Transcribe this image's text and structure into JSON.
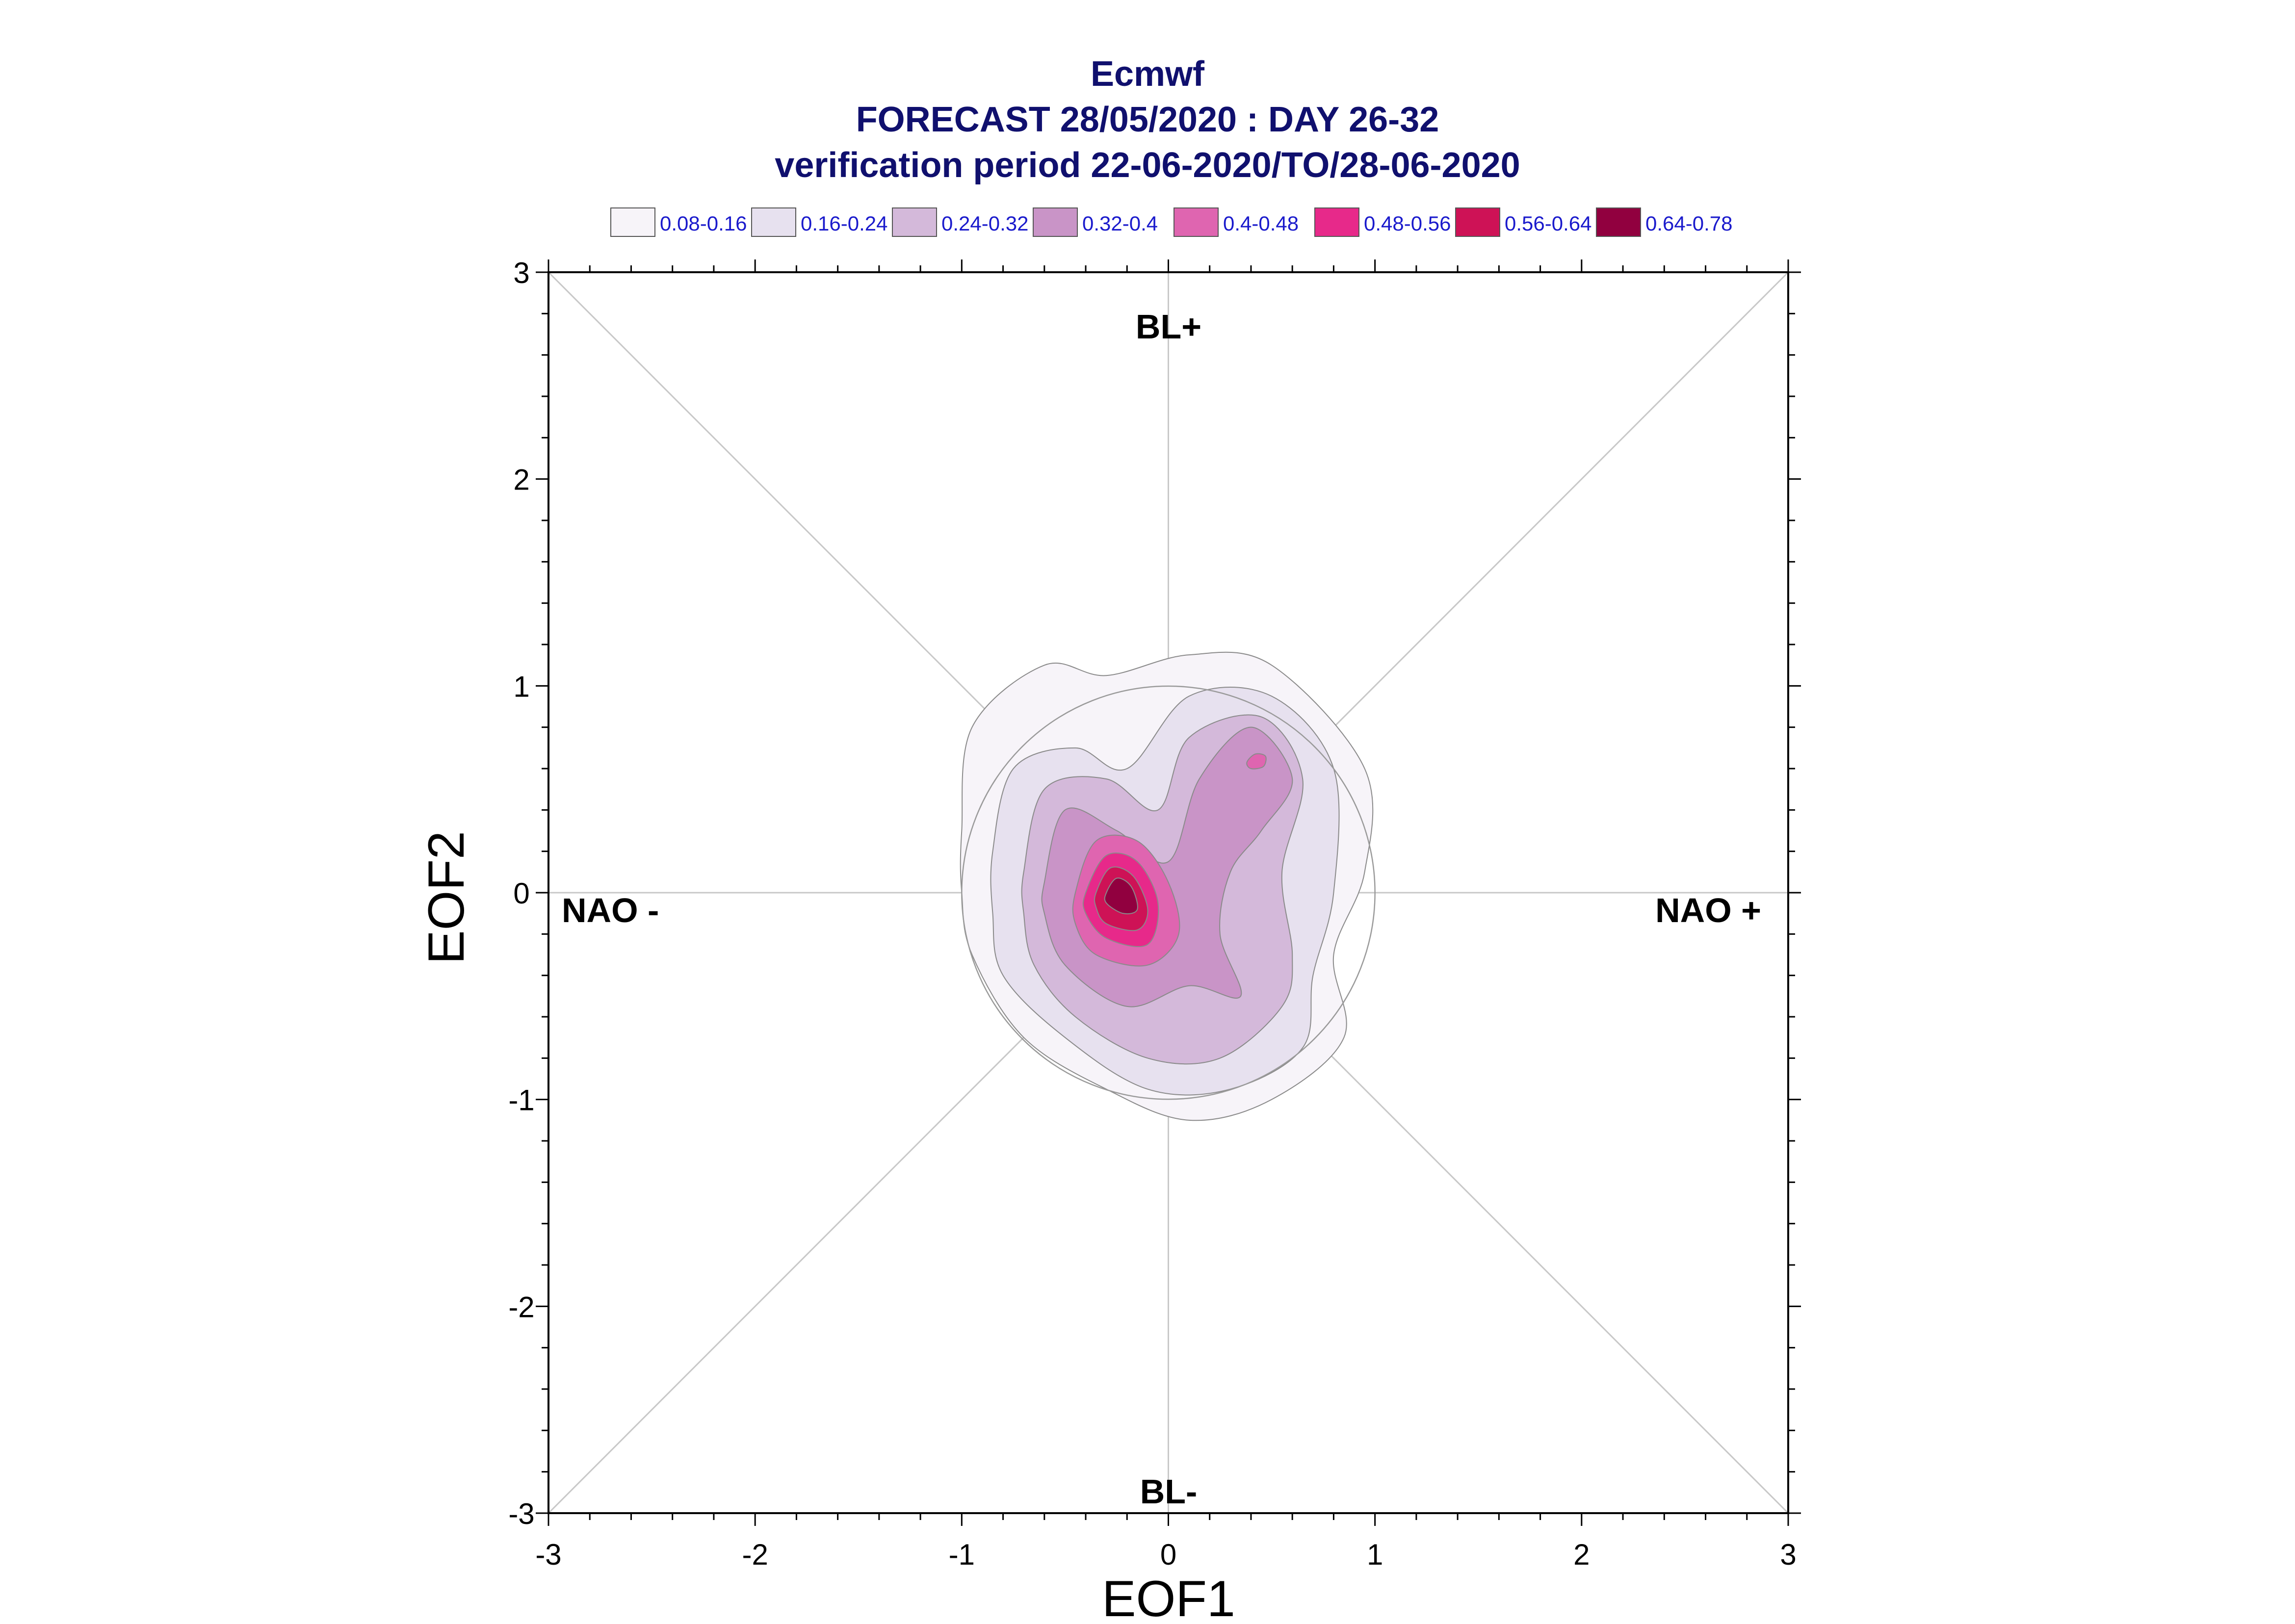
{
  "chart_data": {
    "type": "contour",
    "title_lines": [
      "Ecmwf",
      "FORECAST 28/05/2020 : DAY 26-32",
      "verification period 22-06-2020/TO/28-06-2020"
    ],
    "xlabel": "EOF1",
    "ylabel": "EOF2",
    "xlim": [
      -3,
      3
    ],
    "ylim": [
      -3,
      3
    ],
    "xticks": [
      "-3",
      "-2",
      "-1",
      "0",
      "1",
      "2",
      "3"
    ],
    "yticks": [
      "-3",
      "-2",
      "-1",
      "0",
      "1",
      "2",
      "3"
    ],
    "regime_labels": {
      "top": "BL+",
      "bottom": "BL-",
      "left": "NAO -",
      "right": "NAO +"
    },
    "legend": {
      "placement": "top",
      "entries": [
        {
          "label": "0.08-0.16",
          "color": "#f7f4f9"
        },
        {
          "label": "0.16-0.24",
          "color": "#e7e1ef"
        },
        {
          "label": "0.24-0.32",
          "color": "#d4b9da"
        },
        {
          "label": "0.32-0.4",
          "color": "#c994c7"
        },
        {
          "label": "0.4-0.48",
          "color": "#df65b0"
        },
        {
          "label": "0.48-0.56",
          "color": "#e7298a"
        },
        {
          "label": "0.56-0.64",
          "color": "#ce1256"
        },
        {
          "label": "0.64-0.78",
          "color": "#91003f"
        }
      ]
    },
    "density_levels": [
      {
        "range": "0.08-0.16",
        "color": "#f7f4f9",
        "outline": [
          [
            -1.0,
            0.3
          ],
          [
            -0.95,
            0.8
          ],
          [
            -0.6,
            1.1
          ],
          [
            -0.3,
            1.05
          ],
          [
            0.1,
            1.15
          ],
          [
            0.5,
            1.1
          ],
          [
            0.95,
            0.6
          ],
          [
            0.95,
            0.1
          ],
          [
            0.8,
            -0.3
          ],
          [
            0.85,
            -0.7
          ],
          [
            0.5,
            -1.0
          ],
          [
            0.1,
            -1.1
          ],
          [
            -0.3,
            -0.95
          ],
          [
            -0.7,
            -0.7
          ],
          [
            -0.95,
            -0.3
          ],
          [
            -1.0,
            0.0
          ]
        ]
      },
      {
        "range": "0.16-0.24",
        "color": "#e7e1ef",
        "outline": [
          [
            -0.85,
            0.2
          ],
          [
            -0.75,
            0.6
          ],
          [
            -0.45,
            0.7
          ],
          [
            -0.2,
            0.6
          ],
          [
            0.1,
            0.95
          ],
          [
            0.5,
            0.95
          ],
          [
            0.8,
            0.6
          ],
          [
            0.8,
            0.0
          ],
          [
            0.7,
            -0.4
          ],
          [
            0.65,
            -0.75
          ],
          [
            0.3,
            -0.95
          ],
          [
            -0.1,
            -0.95
          ],
          [
            -0.5,
            -0.7
          ],
          [
            -0.8,
            -0.4
          ],
          [
            -0.85,
            -0.1
          ]
        ]
      },
      {
        "range": "0.24-0.32",
        "color": "#d4b9da",
        "outline": [
          [
            -0.7,
            0.1
          ],
          [
            -0.6,
            0.5
          ],
          [
            -0.3,
            0.55
          ],
          [
            -0.05,
            0.4
          ],
          [
            0.1,
            0.75
          ],
          [
            0.45,
            0.85
          ],
          [
            0.65,
            0.55
          ],
          [
            0.55,
            0.1
          ],
          [
            0.6,
            -0.3
          ],
          [
            0.55,
            -0.55
          ],
          [
            0.25,
            -0.8
          ],
          [
            -0.1,
            -0.8
          ],
          [
            -0.45,
            -0.6
          ],
          [
            -0.65,
            -0.35
          ],
          [
            -0.7,
            -0.1
          ]
        ]
      },
      {
        "range": "0.32-0.4",
        "color": "#c994c7",
        "outline": [
          [
            -0.6,
            0.05
          ],
          [
            -0.5,
            0.4
          ],
          [
            -0.25,
            0.3
          ],
          [
            0.0,
            0.15
          ],
          [
            0.15,
            0.55
          ],
          [
            0.4,
            0.8
          ],
          [
            0.6,
            0.55
          ],
          [
            0.45,
            0.3
          ],
          [
            0.3,
            0.1
          ],
          [
            0.25,
            -0.2
          ],
          [
            0.35,
            -0.5
          ],
          [
            0.1,
            -0.45
          ],
          [
            -0.2,
            -0.55
          ],
          [
            -0.5,
            -0.35
          ],
          [
            -0.6,
            -0.1
          ]
        ]
      },
      {
        "range": "0.4-0.48",
        "color": "#df65b0",
        "outline": [
          [
            -0.45,
            0.0
          ],
          [
            -0.35,
            0.25
          ],
          [
            -0.15,
            0.25
          ],
          [
            0.0,
            0.05
          ],
          [
            0.05,
            -0.2
          ],
          [
            -0.1,
            -0.35
          ],
          [
            -0.35,
            -0.3
          ],
          [
            -0.45,
            -0.15
          ]
        ]
      },
      {
        "range": "0.48-0.56",
        "color": "#e7298a",
        "outline": [
          [
            -0.4,
            0.0
          ],
          [
            -0.3,
            0.18
          ],
          [
            -0.15,
            0.15
          ],
          [
            -0.05,
            -0.05
          ],
          [
            -0.1,
            -0.25
          ],
          [
            -0.3,
            -0.22
          ],
          [
            -0.4,
            -0.1
          ]
        ]
      },
      {
        "range": "0.56-0.64",
        "color": "#ce1256",
        "outline": [
          [
            -0.35,
            0.0
          ],
          [
            -0.28,
            0.12
          ],
          [
            -0.17,
            0.08
          ],
          [
            -0.1,
            -0.08
          ],
          [
            -0.15,
            -0.18
          ],
          [
            -0.3,
            -0.15
          ],
          [
            -0.35,
            -0.07
          ]
        ]
      },
      {
        "range": "0.64-0.78",
        "color": "#91003f",
        "outline": [
          [
            -0.3,
            0.0
          ],
          [
            -0.25,
            0.07
          ],
          [
            -0.18,
            0.03
          ],
          [
            -0.15,
            -0.08
          ],
          [
            -0.22,
            -0.1
          ],
          [
            -0.3,
            -0.05
          ]
        ]
      },
      {
        "range": "0.4-0.48",
        "color": "#df65b0",
        "outline": [
          [
            0.38,
            0.63
          ],
          [
            0.42,
            0.67
          ],
          [
            0.47,
            0.66
          ],
          [
            0.46,
            0.61
          ],
          [
            0.4,
            0.6
          ]
        ]
      }
    ],
    "circles": [
      {
        "center": [
          0,
          0
        ],
        "radius": 1.0
      },
      {
        "center": [
          0,
          1.0
        ],
        "radius": 0.0
      }
    ]
  }
}
